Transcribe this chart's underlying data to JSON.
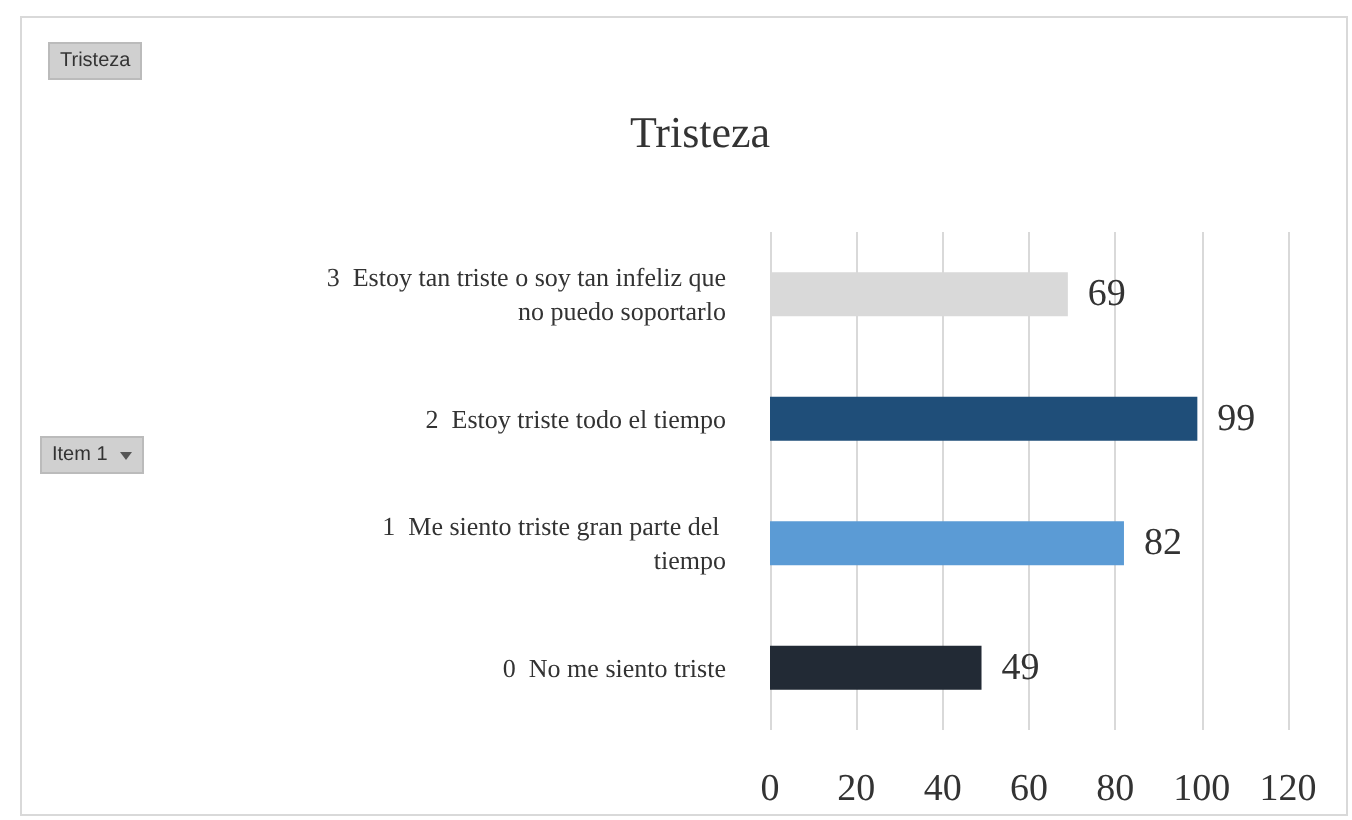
{
  "chart_data": {
    "type": "bar",
    "orientation": "horizontal",
    "title": "Tristeza",
    "annotations": [
      "Tristeza",
      "Item 1"
    ],
    "categories": [
      "3  Estoy tan triste o soy tan infeliz que no puedo soportarlo",
      "2  Estoy triste todo el tiempo",
      "1  Me siento triste gran parte del tiempo",
      "0  No me siento triste"
    ],
    "values": [
      69,
      99,
      82,
      49
    ],
    "colors": [
      "#d9d9d9",
      "#1f4e79",
      "#5b9bd5",
      "#222a35"
    ],
    "xlim": [
      0,
      120
    ],
    "xticks": [
      0,
      20,
      40,
      60,
      80,
      100,
      120
    ],
    "grid": "x",
    "data_labels": true
  }
}
